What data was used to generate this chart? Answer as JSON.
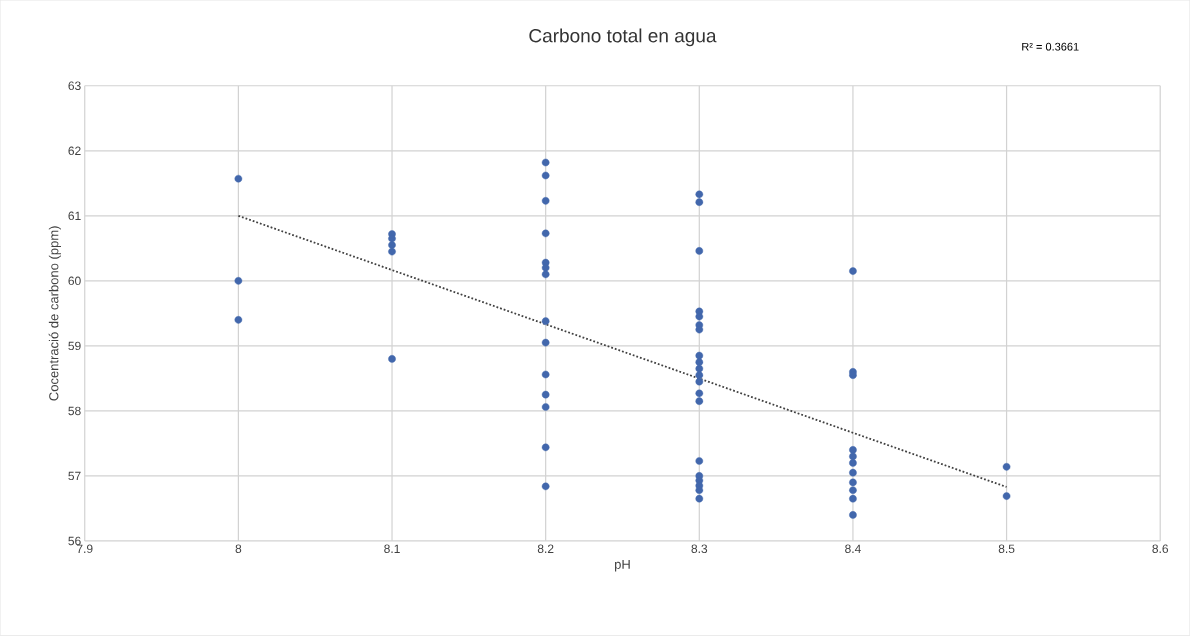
{
  "chart_data": {
    "type": "scatter",
    "title": "Carbono total en agua",
    "xlabel": "pH",
    "ylabel": "Cocentració de carbono (ppm)",
    "annotations": [
      "R² = 0.3661"
    ],
    "xlim": [
      7.9,
      8.6
    ],
    "xticks": [
      7.9,
      8,
      8.1,
      8.2,
      8.3,
      8.4,
      8.5,
      8.6
    ],
    "ylim": [
      56,
      63
    ],
    "yticks": [
      56,
      57,
      58,
      59,
      60,
      61,
      62,
      63
    ],
    "grid": true,
    "series": [
      {
        "color": "#4267ac",
        "marker": "circle",
        "x": [
          8,
          8,
          8,
          8.1,
          8.1,
          8.1,
          8.1,
          8.1,
          8.2,
          8.2,
          8.2,
          8.2,
          8.2,
          8.2,
          8.2,
          8.2,
          8.2,
          8.2,
          8.2,
          8.2,
          8.2,
          8.2,
          8.3,
          8.3,
          8.3,
          8.3,
          8.3,
          8.3,
          8.3,
          8.3,
          8.3,
          8.3,
          8.3,
          8.3,
          8.3,
          8.3,
          8.3,
          8.3,
          8.3,
          8.3,
          8.3,
          8.3,
          8.4,
          8.4,
          8.4,
          8.4,
          8.4,
          8.4,
          8.4,
          8.4,
          8.4,
          8.4,
          8.4,
          8.5,
          8.5
        ],
        "values": [
          61.57,
          60.0,
          59.4,
          60.72,
          60.65,
          60.55,
          60.45,
          58.8,
          61.82,
          61.62,
          61.23,
          60.73,
          60.28,
          60.2,
          60.1,
          59.38,
          59.05,
          58.56,
          58.25,
          58.06,
          57.44,
          56.84,
          61.33,
          61.21,
          60.46,
          59.53,
          59.45,
          59.32,
          59.25,
          58.85,
          58.75,
          58.65,
          58.55,
          58.45,
          58.27,
          58.15,
          57.23,
          57.0,
          56.93,
          56.85,
          56.78,
          56.65,
          60.15,
          58.6,
          58.55,
          57.4,
          57.3,
          57.2,
          57.05,
          56.9,
          56.78,
          56.65,
          56.4,
          57.14,
          56.69
        ]
      },
      {
        "type": "line",
        "color": "#404040",
        "marker": "none",
        "line_style": "dotted",
        "x": [
          8,
          8.5
        ],
        "values": [
          61.0,
          56.83
        ]
      }
    ]
  }
}
